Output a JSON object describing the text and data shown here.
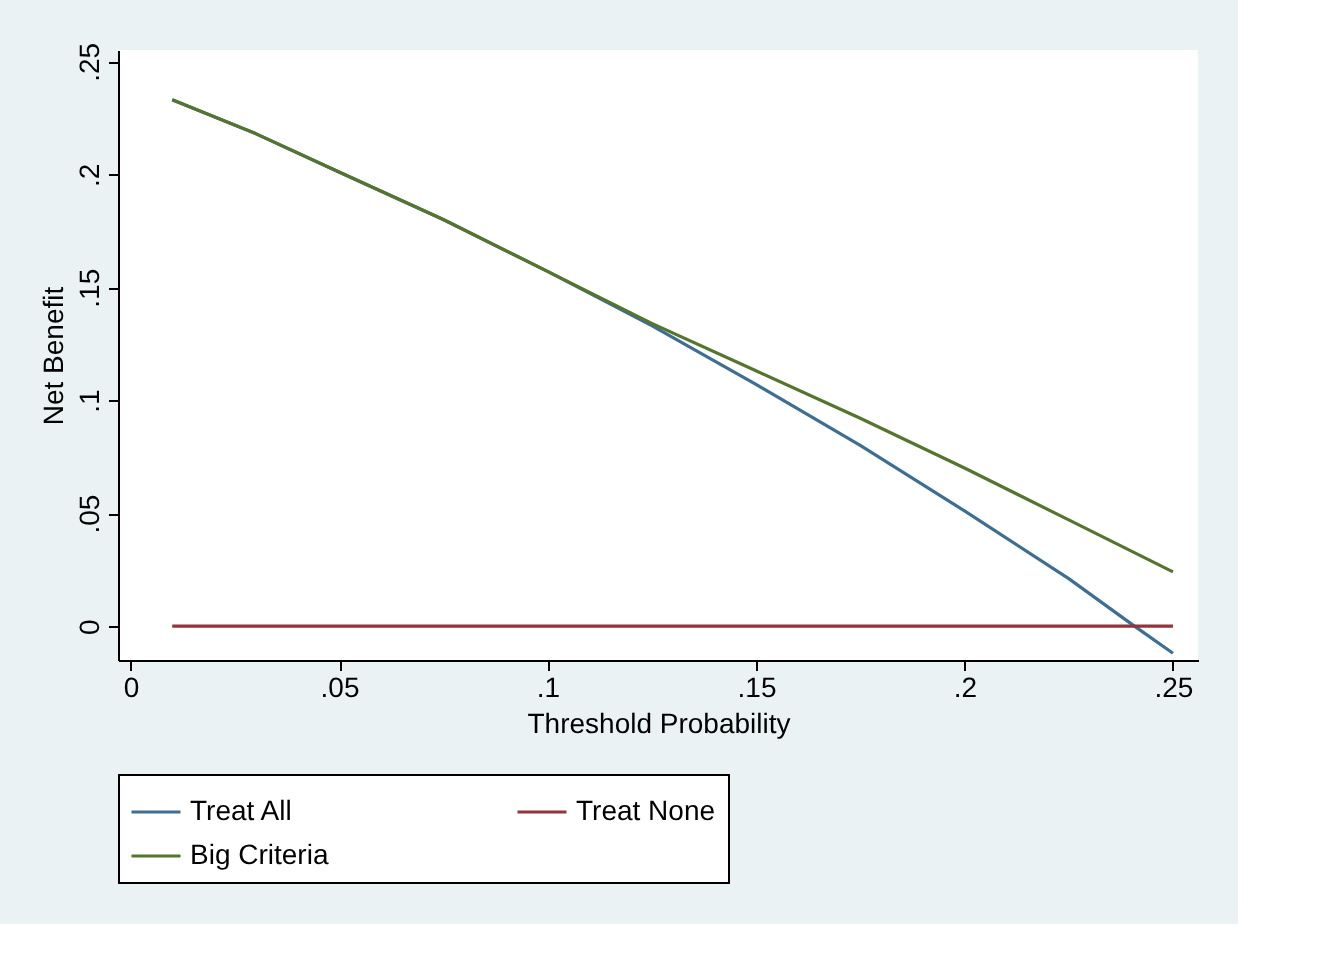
{
  "chart_data": {
    "type": "line",
    "xlabel": "Threshold Probability",
    "ylabel": "Net Benefit",
    "series": [
      {
        "name": "Treat All",
        "color": "#3e6e91",
        "x": [
          0.01,
          0.03,
          0.05,
          0.075,
          0.1,
          0.125,
          0.15,
          0.175,
          0.2,
          0.225,
          0.24,
          0.25
        ],
        "values": [
          0.233,
          0.218,
          0.201,
          0.18,
          0.157,
          0.133,
          0.107,
          0.08,
          0.051,
          0.021,
          0.001,
          -0.012
        ]
      },
      {
        "name": "Treat None",
        "color": "#90353b",
        "x": [
          0.01,
          0.25
        ],
        "values": [
          0,
          0
        ]
      },
      {
        "name": "Big Criteria",
        "color": "#55752f",
        "x": [
          0.01,
          0.03,
          0.05,
          0.075,
          0.1,
          0.125,
          0.15,
          0.175,
          0.2,
          0.225,
          0.25
        ],
        "values": [
          0.233,
          0.218,
          0.201,
          0.18,
          0.157,
          0.134,
          0.113,
          0.092,
          0.07,
          0.047,
          0.024
        ]
      }
    ],
    "xlim": [
      -0.003,
      0.256
    ],
    "ylim": [
      -0.015,
      0.255
    ],
    "xticks": [
      0,
      {
        "value": 0.05,
        "label": ".05"
      },
      {
        "value": 0.1,
        "label": ".1"
      },
      {
        "value": 0.15,
        "label": ".15"
      },
      {
        "value": 0.2,
        "label": ".2"
      },
      {
        "value": 0.25,
        "label": ".25"
      }
    ],
    "yticks": [
      0,
      {
        "value": 0.05,
        "label": ".05"
      },
      {
        "value": 0.1,
        "label": ".1"
      },
      {
        "value": 0.15,
        "label": ".15"
      },
      {
        "value": 0.2,
        "label": ".2"
      },
      {
        "value": 0.25,
        "label": ".25"
      }
    ],
    "grid": false,
    "legend": "bottom",
    "line_style": "solid"
  }
}
